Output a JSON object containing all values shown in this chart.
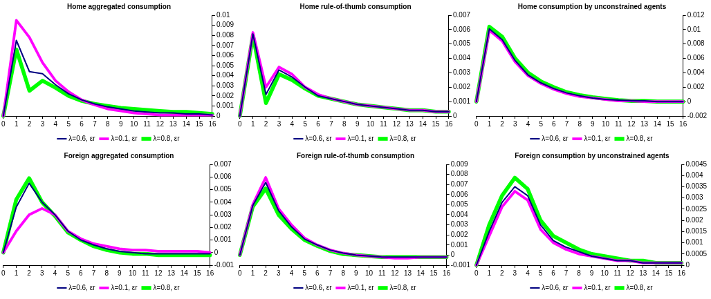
{
  "chart_data": [
    {
      "type": "line",
      "title": "Home aggregated consumption",
      "x": [
        0,
        1,
        2,
        3,
        4,
        5,
        6,
        7,
        8,
        9,
        10,
        11,
        12,
        13,
        14,
        15,
        16
      ],
      "xlim": [
        0,
        16
      ],
      "xticks": [
        0,
        1,
        2,
        3,
        4,
        5,
        6,
        7,
        8,
        9,
        10,
        11,
        12,
        13,
        14,
        15,
        16
      ],
      "ylim": [
        0,
        0.01
      ],
      "yticks": [
        0,
        0.001,
        0.002,
        0.003,
        0.004,
        0.005,
        0.006,
        0.007,
        0.008,
        0.009,
        0.01
      ],
      "grid": false,
      "legend": "bottom",
      "marker": "none",
      "line_style": "solid",
      "series": [
        {
          "name": "λ=0.6, εr",
          "color": "#000080",
          "values": [
            0,
            0.0075,
            0.0044,
            0.0042,
            0.0031,
            0.0022,
            0.0016,
            0.0012,
            0.0009,
            0.0007,
            0.0005,
            0.0004,
            0.0003,
            0.0003,
            0.0002,
            0.0002,
            0.0001
          ]
        },
        {
          "name": "λ=0.1, εr",
          "color": "#ff00ff",
          "values": [
            0,
            0.0095,
            0.0078,
            0.0053,
            0.0035,
            0.0024,
            0.0016,
            0.0011,
            0.0007,
            0.0005,
            0.0003,
            0.0002,
            0.0001,
            0.0001,
            0.0001,
            0.0001,
            0.0001
          ]
        },
        {
          "name": "λ=0.8, εr",
          "color": "#00ff00",
          "values": [
            0,
            0.0066,
            0.0025,
            0.0035,
            0.0028,
            0.002,
            0.0015,
            0.0012,
            0.001,
            0.0008,
            0.0007,
            0.0006,
            0.0005,
            0.0004,
            0.0004,
            0.0003,
            0.0002
          ]
        }
      ]
    },
    {
      "type": "line",
      "title": "Home rule-of-thumb consumption",
      "x": [
        0,
        1,
        2,
        3,
        4,
        5,
        6,
        7,
        8,
        9,
        10,
        11,
        12,
        13,
        14,
        15,
        16
      ],
      "xlim": [
        0,
        16
      ],
      "xticks": [
        0,
        1,
        2,
        3,
        4,
        5,
        6,
        7,
        8,
        9,
        10,
        11,
        12,
        13,
        14,
        15,
        16
      ],
      "ylim": [
        0,
        0.007
      ],
      "yticks": [
        0,
        0.001,
        0.002,
        0.003,
        0.004,
        0.005,
        0.006,
        0.007
      ],
      "grid": false,
      "legend": "bottom",
      "marker": "none",
      "line_style": "solid",
      "series": [
        {
          "name": "λ=0.6, εr",
          "color": "#000080",
          "values": [
            0,
            0.0057,
            0.0015,
            0.0032,
            0.0027,
            0.002,
            0.0014,
            0.0012,
            0.001,
            0.0008,
            0.0007,
            0.0006,
            0.0005,
            0.0004,
            0.0004,
            0.0003,
            0.0003
          ]
        },
        {
          "name": "λ=0.1, εr",
          "color": "#ff00ff",
          "values": [
            0,
            0.0058,
            0.002,
            0.0034,
            0.0029,
            0.002,
            0.0015,
            0.0012,
            0.001,
            0.0008,
            0.0007,
            0.0006,
            0.0005,
            0.0004,
            0.0004,
            0.0003,
            0.0003
          ]
        },
        {
          "name": "λ=0.8, εr",
          "color": "#00ff00",
          "values": [
            0,
            0.0056,
            0.0009,
            0.0029,
            0.0025,
            0.0019,
            0.0014,
            0.0012,
            0.001,
            0.0008,
            0.0007,
            0.0006,
            0.0005,
            0.0004,
            0.0004,
            0.0003,
            0.0003
          ]
        }
      ]
    },
    {
      "type": "line",
      "title": "Home consumption by unconstrained agents",
      "x": [
        0,
        1,
        2,
        3,
        4,
        5,
        6,
        7,
        8,
        9,
        10,
        11,
        12,
        13,
        14,
        15,
        16
      ],
      "xlim": [
        0,
        16
      ],
      "xticks": [
        0,
        1,
        2,
        3,
        4,
        5,
        6,
        7,
        8,
        9,
        10,
        11,
        12,
        13,
        14,
        15,
        16
      ],
      "ylim": [
        -0.002,
        0.012
      ],
      "yticks": [
        -0.002,
        0,
        0.002,
        0.004,
        0.006,
        0.008,
        0.01,
        0.012
      ],
      "grid": false,
      "legend": "bottom",
      "marker": "none",
      "line_style": "solid",
      "series": [
        {
          "name": "λ=0.6, εr",
          "color": "#000080",
          "values": [
            0,
            0.0101,
            0.0086,
            0.0057,
            0.0037,
            0.0026,
            0.0018,
            0.0012,
            0.0008,
            0.0005,
            0.0003,
            0.0002,
            0.0001,
            0.0001,
            0,
            0,
            0
          ]
        },
        {
          "name": "λ=0.1, εr",
          "color": "#ff00ff",
          "values": [
            0,
            0.0099,
            0.0084,
            0.0055,
            0.0036,
            0.0025,
            0.0017,
            0.0011,
            0.0007,
            0.0005,
            0.0003,
            0.0001,
            0.0001,
            0,
            0,
            0,
            0
          ]
        },
        {
          "name": "λ=0.8, εr",
          "color": "#00ff00",
          "values": [
            0,
            0.0104,
            0.009,
            0.006,
            0.004,
            0.0028,
            0.002,
            0.0013,
            0.0009,
            0.0006,
            0.0004,
            0.0002,
            0.0001,
            0.0001,
            0,
            0,
            0
          ]
        }
      ]
    },
    {
      "type": "line",
      "title": "Foreign aggregated consumption",
      "x": [
        0,
        1,
        2,
        3,
        4,
        5,
        6,
        7,
        8,
        9,
        10,
        11,
        12,
        13,
        14,
        15,
        16
      ],
      "xlim": [
        0,
        16
      ],
      "xticks": [
        0,
        1,
        2,
        3,
        4,
        5,
        6,
        7,
        8,
        9,
        10,
        11,
        12,
        13,
        14,
        15,
        16
      ],
      "ylim": [
        -0.001,
        0.007
      ],
      "yticks": [
        -0.001,
        0,
        0.001,
        0.002,
        0.003,
        0.004,
        0.005,
        0.006,
        0.007
      ],
      "grid": false,
      "legend": "bottom",
      "marker": "none",
      "line_style": "solid",
      "series": [
        {
          "name": "λ=0.6, εr",
          "color": "#000080",
          "values": [
            0,
            0.0036,
            0.0055,
            0.004,
            0.003,
            0.0017,
            0.001,
            0.0006,
            0.0003,
            0.0001,
            0,
            -0.0001,
            -0.0001,
            -0.0001,
            -0.0001,
            -0.0001,
            -0.0001
          ]
        },
        {
          "name": "λ=0.1, εr",
          "color": "#ff00ff",
          "values": [
            0,
            0.0017,
            0.003,
            0.0035,
            0.003,
            0.0017,
            0.0011,
            0.0007,
            0.0005,
            0.0003,
            0.0002,
            0.0002,
            0.0001,
            0.0001,
            0.0001,
            0.0001,
            0
          ]
        },
        {
          "name": "λ=0.8, εr",
          "color": "#00ff00",
          "values": [
            0,
            0.0042,
            0.0059,
            0.004,
            0.0029,
            0.0016,
            0.001,
            0.0005,
            0.0002,
            0,
            -0.0001,
            -0.0001,
            -0.0002,
            -0.0002,
            -0.0002,
            -0.0002,
            -0.0002
          ]
        }
      ]
    },
    {
      "type": "line",
      "title": "Foreign rule-of-thumb consumption",
      "x": [
        0,
        1,
        2,
        3,
        4,
        5,
        6,
        7,
        8,
        9,
        10,
        11,
        12,
        13,
        14,
        15,
        16
      ],
      "xlim": [
        0,
        16
      ],
      "xticks": [
        0,
        1,
        2,
        3,
        4,
        5,
        6,
        7,
        8,
        9,
        10,
        11,
        12,
        13,
        14,
        15,
        16
      ],
      "ylim": [
        -0.001,
        0.009
      ],
      "yticks": [
        -0.001,
        0,
        0.001,
        0.002,
        0.003,
        0.004,
        0.005,
        0.006,
        0.007,
        0.008,
        0.009
      ],
      "grid": false,
      "legend": "bottom",
      "marker": "none",
      "line_style": "solid",
      "series": [
        {
          "name": "λ=0.6, εr",
          "color": "#000080",
          "values": [
            0,
            0.0049,
            0.0072,
            0.0044,
            0.0028,
            0.0016,
            0.001,
            0.0005,
            0.0002,
            0,
            -0.0001,
            -0.0002,
            -0.0002,
            -0.0002,
            -0.0002,
            -0.0002,
            -0.0002
          ]
        },
        {
          "name": "λ=0.1, εr",
          "color": "#ff00ff",
          "values": [
            0,
            0.005,
            0.0077,
            0.0046,
            0.003,
            0.0017,
            0.001,
            0.0005,
            0.0002,
            0,
            -0.0001,
            -0.0002,
            -0.0003,
            -0.0003,
            -0.0002,
            -0.0002,
            -0.0002
          ]
        },
        {
          "name": "λ=0.8, εr",
          "color": "#00ff00",
          "values": [
            0,
            0.0048,
            0.0066,
            0.004,
            0.0026,
            0.0015,
            0.0009,
            0.0004,
            0.0001,
            0,
            -0.0001,
            -0.0002,
            -0.0002,
            -0.0002,
            -0.0002,
            -0.0002,
            -0.0002
          ]
        }
      ]
    },
    {
      "type": "line",
      "title": "Foreign consumption by unconstrained agents",
      "x": [
        0,
        1,
        2,
        3,
        4,
        5,
        6,
        7,
        8,
        9,
        10,
        11,
        12,
        13,
        14,
        15,
        16
      ],
      "xlim": [
        0,
        16
      ],
      "xticks": [
        0,
        1,
        2,
        3,
        4,
        5,
        6,
        7,
        8,
        9,
        10,
        11,
        12,
        13,
        14,
        15,
        16
      ],
      "ylim": [
        0,
        0.0045
      ],
      "yticks": [
        0,
        0.0005,
        0.001,
        0.0015,
        0.002,
        0.0025,
        0.003,
        0.0035,
        0.004,
        0.0045
      ],
      "grid": false,
      "legend": "bottom",
      "marker": "none",
      "line_style": "solid",
      "series": [
        {
          "name": "λ=0.6, εr",
          "color": "#000080",
          "values": [
            0,
            0.0015,
            0.0028,
            0.0035,
            0.0031,
            0.0018,
            0.0011,
            0.0008,
            0.0006,
            0.0004,
            0.0003,
            0.0002,
            0.0002,
            0.0001,
            0.0001,
            0.0001,
            0.0001
          ]
        },
        {
          "name": "λ=0.1, εr",
          "color": "#ff00ff",
          "values": [
            0,
            0.0013,
            0.0026,
            0.0033,
            0.0029,
            0.0016,
            0.001,
            0.0007,
            0.0005,
            0.0004,
            0.0003,
            0.0002,
            0.0002,
            0.0001,
            0.0001,
            0.0001,
            0.0001
          ]
        },
        {
          "name": "λ=0.8, εr",
          "color": "#00ff00",
          "values": [
            0,
            0.0018,
            0.0031,
            0.0039,
            0.0034,
            0.002,
            0.0013,
            0.001,
            0.0007,
            0.0005,
            0.0004,
            0.0003,
            0.0002,
            0.0002,
            0.0001,
            0.0001,
            0.0001
          ]
        }
      ]
    }
  ]
}
